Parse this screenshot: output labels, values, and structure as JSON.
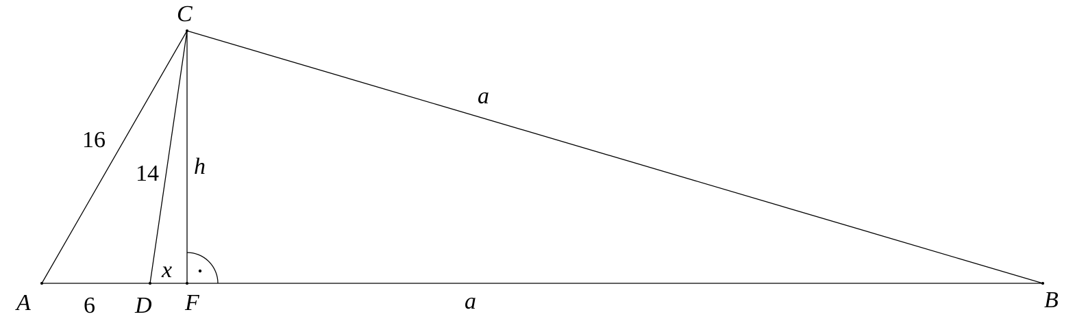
{
  "figure": {
    "points": {
      "A": "A",
      "B": "B",
      "C": "C",
      "D": "D",
      "F": "F"
    },
    "segment_labels": {
      "AC": "16",
      "DC": "14",
      "CF": "h",
      "CB": "a",
      "AD": "6",
      "DF": "x",
      "FB": "a"
    },
    "right_angle_mark": "·",
    "colors": {
      "stroke": "#000000",
      "background": "#ffffff"
    }
  }
}
